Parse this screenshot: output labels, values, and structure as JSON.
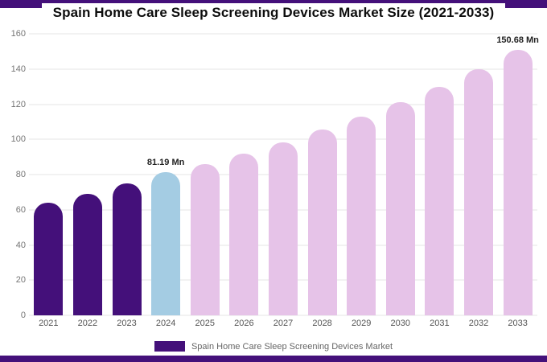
{
  "header": {
    "title": "Spain Home Care Sleep Screening Devices Market Size (2021-2033)"
  },
  "legend": {
    "label": "Spain Home Care Sleep Screening Devices Market"
  },
  "colors": {
    "historical_purple": "#44107A",
    "highlight_blue": "#A4CCE3",
    "forecast_pink": "#E6C3E8",
    "band_purple": "#44107A"
  },
  "chart_data": {
    "type": "bar",
    "title": "Spain Home Care Sleep Screening Devices Market Size (2021-2033)",
    "unit": "Mn",
    "categories": [
      "2021",
      "2022",
      "2023",
      "2024",
      "2025",
      "2026",
      "2027",
      "2028",
      "2029",
      "2030",
      "2031",
      "2032",
      "2033"
    ],
    "values": [
      64,
      69,
      75,
      81.19,
      86,
      92,
      98.5,
      105.5,
      113,
      121,
      130,
      140,
      150.68
    ],
    "bar_colors": [
      "#44107A",
      "#44107A",
      "#44107A",
      "#A4CCE3",
      "#E6C3E8",
      "#E6C3E8",
      "#E6C3E8",
      "#E6C3E8",
      "#E6C3E8",
      "#E6C3E8",
      "#E6C3E8",
      "#E6C3E8",
      "#E6C3E8"
    ],
    "annotations": [
      {
        "index": 3,
        "text": "81.19 Mn"
      },
      {
        "index": 12,
        "text": "150.68 Mn"
      }
    ],
    "ylim": [
      0,
      160
    ],
    "yticks": [
      0,
      20,
      40,
      60,
      80,
      100,
      120,
      140,
      160
    ],
    "grid": true,
    "legend_position": "bottom",
    "legend_entries": [
      "Spain Home Care Sleep Screening Devices Market"
    ]
  }
}
